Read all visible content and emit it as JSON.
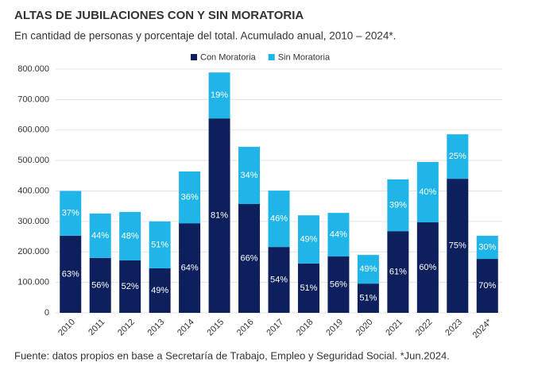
{
  "chart_data": {
    "type": "stacked_bar",
    "title": "ALTAS DE JUBILACIONES CON Y SIN MORATORIA",
    "subtitle": "En cantidad de personas y porcentaje del total. Acumulado anual, 2010 – 2024*.",
    "source": "Fuente: datos propios en base a Secretaría de Trabajo, Empleo y Seguridad Social. *Jun.2024.",
    "categories": [
      "2010",
      "2011",
      "2012",
      "2013",
      "2014",
      "2015",
      "2016",
      "2017",
      "2018",
      "2019",
      "2020",
      "2021",
      "2022",
      "2023",
      "2024*"
    ],
    "series": [
      {
        "name": "Con Moratoria",
        "color": "#0d1f5c",
        "values": [
          253000,
          180000,
          172000,
          146000,
          294000,
          638000,
          357000,
          216000,
          162000,
          185000,
          96000,
          268000,
          297000,
          440000,
          177000
        ],
        "percent_labels": [
          "63%",
          "56%",
          "52%",
          "49%",
          "64%",
          "81%",
          "66%",
          "54%",
          "51%",
          "56%",
          "51%",
          "61%",
          "60%",
          "75%",
          "70%"
        ]
      },
      {
        "name": "Sin Moratoria",
        "color": "#1fb5e8",
        "values": [
          147000,
          146000,
          159000,
          154000,
          170000,
          151000,
          188000,
          185000,
          158000,
          143000,
          94000,
          170000,
          198000,
          146000,
          76000
        ],
        "percent_labels": [
          "37%",
          "44%",
          "48%",
          "51%",
          "36%",
          "19%",
          "34%",
          "46%",
          "49%",
          "44%",
          "49%",
          "39%",
          "40%",
          "25%",
          "30%"
        ]
      }
    ],
    "ylim": [
      0,
      800000
    ],
    "yticks": [
      0,
      {
        "value": 100000,
        "label": "100.000"
      },
      {
        "value": 200000,
        "label": "200.000"
      },
      {
        "value": 300000,
        "label": "300.000"
      },
      {
        "value": 400000,
        "label": "400.000"
      },
      {
        "value": 500000,
        "label": "500.000"
      },
      {
        "value": 600000,
        "label": "600.000"
      },
      {
        "value": 700000,
        "label": "700.000"
      },
      {
        "value": 800000,
        "label": "800.000"
      }
    ],
    "grid": true,
    "legend": "top"
  }
}
